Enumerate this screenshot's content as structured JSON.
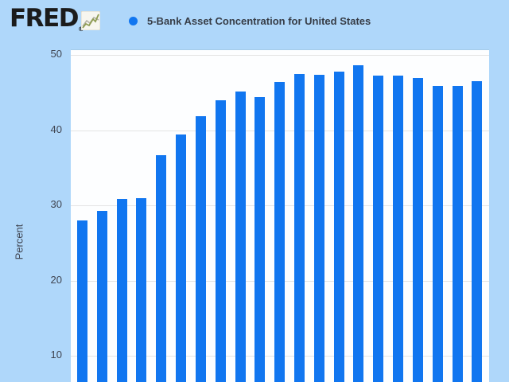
{
  "header": {
    "logo_text": "FRED",
    "registered_mark": "®",
    "title": "5-Bank Asset Concentration for United States"
  },
  "y_axis": {
    "label": "Percent",
    "tick_labels": [
      "50",
      "40",
      "30",
      "20",
      "10"
    ]
  },
  "chart_data": {
    "type": "bar",
    "title": "5-Bank Asset Concentration for United States",
    "xlabel": "",
    "ylabel": "Percent",
    "values": [
      28.0,
      29.3,
      30.8,
      31.0,
      36.7,
      39.4,
      41.8,
      44.0,
      45.1,
      44.4,
      46.4,
      47.5,
      47.4,
      47.8,
      48.6,
      47.2,
      47.3,
      46.9,
      45.9,
      45.9,
      46.5
    ],
    "bar_count": 21,
    "x_tick_labels_visible": false,
    "yticks": [
      10,
      20,
      30,
      40,
      50
    ],
    "ylim_visible": [
      6,
      50
    ],
    "grid": "horizontal",
    "legend_position": "top",
    "legend_marker": "filled-circle"
  },
  "colors": {
    "page_background": "#afd7fa",
    "plot_background": "#fdfeff",
    "bar": "#1176f0",
    "legend_dot": "#1176f0",
    "gridline": "#e4e4e4",
    "title_text": "#373d47",
    "axis_text": "#3f4450",
    "logo_text": "#1b1b1b"
  },
  "icons": {
    "logo_chart_icon": "line-graph-icon"
  }
}
